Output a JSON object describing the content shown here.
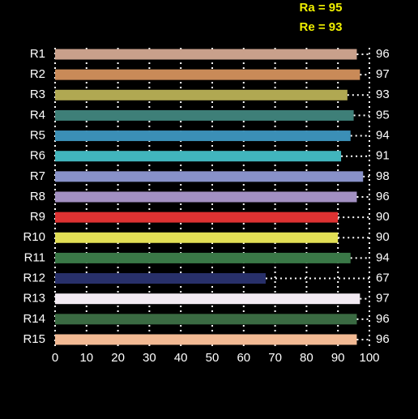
{
  "chart_data": {
    "type": "bar",
    "orientation": "horizontal",
    "annotations": [
      "Ra = 95",
      "Re = 93"
    ],
    "categories": [
      "R1",
      "R2",
      "R3",
      "R4",
      "R5",
      "R6",
      "R7",
      "R8",
      "R9",
      "R10",
      "R11",
      "R12",
      "R13",
      "R14",
      "R15"
    ],
    "values": [
      96,
      97,
      93,
      95,
      94,
      91,
      98,
      96,
      90,
      90,
      94,
      67,
      97,
      96,
      96
    ],
    "colors": [
      "#c9a08b",
      "#c98a58",
      "#b0a852",
      "#3e7f78",
      "#3b8fb6",
      "#41b5bd",
      "#8891c9",
      "#a290c2",
      "#de3232",
      "#e2df55",
      "#3a7847",
      "#28306a",
      "#f2eaf2",
      "#3a6a42",
      "#f2b993"
    ],
    "xlim": [
      0,
      100
    ],
    "xticks": [
      0,
      10,
      20,
      30,
      40,
      50,
      60,
      70,
      80,
      90,
      100
    ],
    "grid": true
  }
}
